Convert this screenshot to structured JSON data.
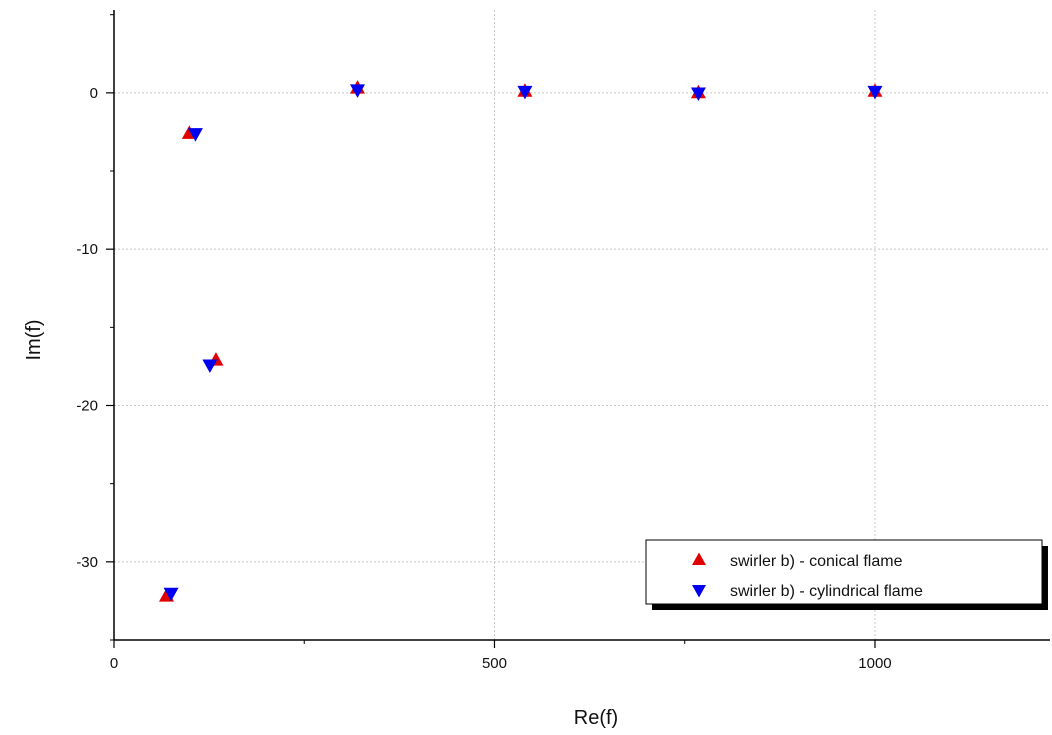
{
  "chart_data": {
    "type": "scatter",
    "title": "",
    "xlabel": "Re(f)",
    "ylabel": "Im(f)",
    "xlim": [
      0,
      1230
    ],
    "ylim": [
      -35,
      5.3
    ],
    "xticks": [
      0,
      500,
      1000
    ],
    "yticks": [
      0,
      -10,
      -20,
      -30
    ],
    "x_minor_step": 250,
    "y_minor_step": 5,
    "grid": true,
    "legend_position": "bottom-right",
    "series": [
      {
        "name": "swirler b) - conical flame",
        "marker": "triangle-up",
        "color": "#e00000",
        "x": [
          69,
          99,
          134,
          320,
          540,
          768,
          1000
        ],
        "y": [
          -32.2,
          -2.6,
          -17.1,
          0.3,
          0.1,
          0.0,
          0.1
        ]
      },
      {
        "name": "swirler b) - cylindrical flame",
        "marker": "triangle-down",
        "color": "#0000ee",
        "x": [
          75,
          107,
          126,
          320,
          540,
          768,
          1000
        ],
        "y": [
          -32.0,
          -2.6,
          -17.4,
          0.2,
          0.1,
          0.0,
          0.1
        ]
      }
    ]
  }
}
